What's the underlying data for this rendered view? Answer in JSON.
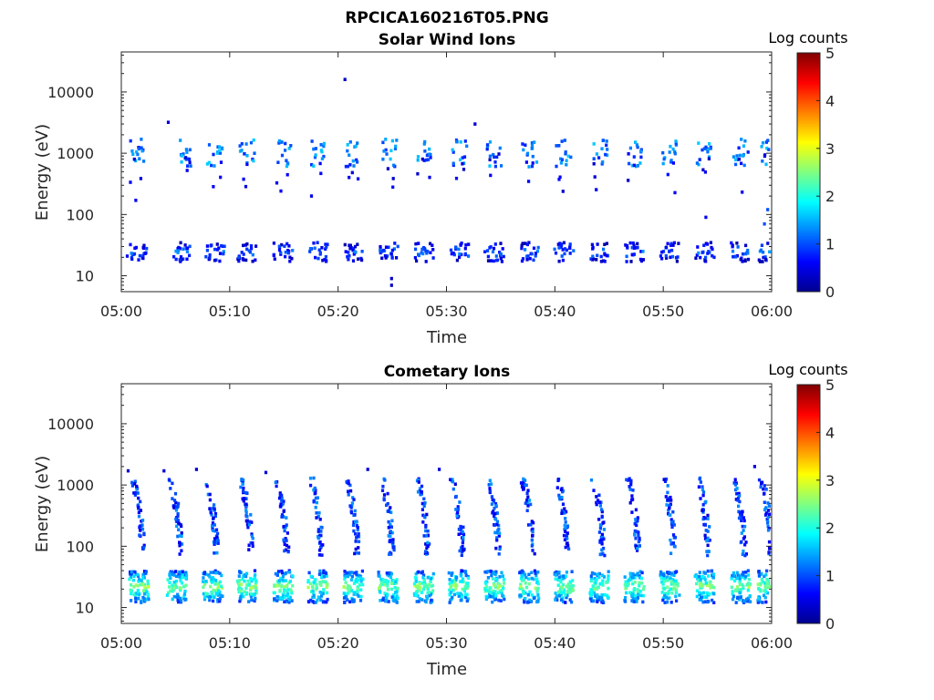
{
  "figure_title": "RPCICA160216T05.PNG",
  "colormap_stops": [
    "#00008f",
    "#0000ff",
    "#0080ff",
    "#00ffff",
    "#80ff80",
    "#ffff00",
    "#ff8000",
    "#ff0000",
    "#800000"
  ],
  "chart_data": [
    {
      "type": "heatmap",
      "title": "Solar Wind Ions",
      "xlabel": "Time",
      "ylabel": "Energy (eV)",
      "x_tick_labels": [
        "05:00",
        "05:10",
        "05:20",
        "05:30",
        "05:40",
        "05:50",
        "06:00"
      ],
      "x_range_minutes": [
        0,
        60
      ],
      "y_scale": "log",
      "y_range": [
        5.5,
        45000
      ],
      "y_tick_values": [
        10,
        100,
        1000,
        10000
      ],
      "y_tick_labels": [
        "10",
        "100",
        "1000",
        "10000"
      ],
      "colorbar": {
        "label": "Log counts",
        "range": [
          0,
          5
        ],
        "tick_labels": [
          "0",
          "1",
          "2",
          "3",
          "4",
          "5"
        ]
      },
      "bursts": {
        "times_min": [
          1.3,
          5.6,
          8.5,
          11.5,
          14.8,
          18.0,
          21.3,
          24.6,
          27.8,
          31.1,
          34.3,
          37.5,
          40.7,
          44.0,
          47.2,
          50.5,
          53.7,
          57.0,
          59.6
        ],
        "low_band_energy_range": [
          17,
          35
        ],
        "low_band_log_counts": 0.8,
        "high_band_energy_center": 1100,
        "high_band_energy_spread": [
          600,
          1700
        ],
        "high_band_log_counts": 1.2
      },
      "isolated_points": [
        {
          "t": 20.5,
          "e": 16000,
          "v": 0.3
        },
        {
          "t": 4.2,
          "e": 3200,
          "v": 0.4
        },
        {
          "t": 32.5,
          "e": 3000,
          "v": 0.4
        },
        {
          "t": 1.2,
          "e": 170,
          "v": 0.5
        },
        {
          "t": 53.8,
          "e": 90,
          "v": 0.6
        },
        {
          "t": 24.8,
          "e": 9,
          "v": 0.3
        },
        {
          "t": 24.8,
          "e": 7,
          "v": 0.3
        },
        {
          "t": 59.5,
          "e": 120,
          "v": 1.0
        },
        {
          "t": 59.2,
          "e": 70,
          "v": 1.0
        }
      ]
    },
    {
      "type": "heatmap",
      "title": "Cometary Ions",
      "xlabel": "Time",
      "ylabel": "Energy (eV)",
      "x_tick_labels": [
        "05:00",
        "05:10",
        "05:20",
        "05:30",
        "05:40",
        "05:50",
        "06:00"
      ],
      "x_range_minutes": [
        0,
        60
      ],
      "y_scale": "log",
      "y_range": [
        5.5,
        45000
      ],
      "y_tick_values": [
        10,
        100,
        1000,
        10000
      ],
      "y_tick_labels": [
        "10",
        "100",
        "1000",
        "10000"
      ],
      "colorbar": {
        "label": "Log counts",
        "range": [
          0,
          5
        ],
        "tick_labels": [
          "0",
          "1",
          "2",
          "3",
          "4",
          "5"
        ]
      },
      "bursts": {
        "times_min": [
          1.5,
          5.0,
          8.3,
          11.5,
          14.8,
          18.0,
          21.3,
          24.5,
          27.8,
          31.0,
          34.3,
          37.5,
          40.7,
          44.0,
          47.2,
          50.5,
          53.7,
          57.0,
          59.5
        ],
        "low_band_energy_range": [
          12,
          40
        ],
        "low_band_log_counts": 1.9,
        "arc_energy_range": [
          70,
          1300
        ],
        "arc_log_counts": 0.9
      },
      "isolated_points": [
        {
          "t": 0.5,
          "e": 1700,
          "v": 0.4
        },
        {
          "t": 3.8,
          "e": 1700,
          "v": 0.4
        },
        {
          "t": 6.8,
          "e": 1800,
          "v": 0.4
        },
        {
          "t": 13.2,
          "e": 1600,
          "v": 0.4
        },
        {
          "t": 22.6,
          "e": 1800,
          "v": 0.4
        },
        {
          "t": 29.2,
          "e": 1800,
          "v": 0.4
        },
        {
          "t": 58.3,
          "e": 2000,
          "v": 0.5
        }
      ]
    }
  ]
}
